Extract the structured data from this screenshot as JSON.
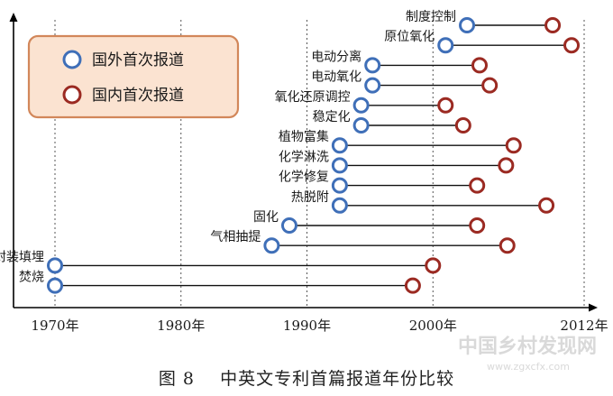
{
  "caption": "图 8    中英文专利首篇报道年份比较",
  "watermark": {
    "name": "中国乡村发现网",
    "url": "www.zgxcfx.com"
  },
  "colors": {
    "foreign": "#3f6fb8",
    "domestic": "#9b2a22",
    "legend_bg": "#fbe3d1",
    "legend_border": "#d2875a",
    "axis": "#000000",
    "connector": "#111111"
  },
  "chart_data": {
    "type": "dumbbell",
    "xlim": [
      1970,
      2012
    ],
    "xticks": [
      {
        "value": 1970,
        "label": "1970年"
      },
      {
        "value": 1980,
        "label": "1980年"
      },
      {
        "value": 1990,
        "label": "1990年"
      },
      {
        "value": 2000,
        "label": "2000年"
      },
      {
        "value": 2012,
        "label": "2012年"
      }
    ],
    "vgrid": [
      1970,
      1980,
      1990,
      2000,
      2012
    ],
    "vgrid_style": "dotted",
    "legend_position": "top-left",
    "series": [
      {
        "key": "foreign",
        "name": "国外首次报道"
      },
      {
        "key": "domestic",
        "name": "国内首次报道"
      }
    ],
    "rows": [
      {
        "label": "制度控制",
        "foreign": 2002.7,
        "domestic": 2009.5
      },
      {
        "label": "原位氧化",
        "foreign": 2001.0,
        "domestic": 2011.0
      },
      {
        "label": "电动分离",
        "foreign": 1995.2,
        "domestic": 2003.7
      },
      {
        "label": "电动氧化",
        "foreign": 1995.2,
        "domestic": 2004.5
      },
      {
        "label": "氧化还原调控",
        "foreign": 1994.3,
        "domestic": 2001.0
      },
      {
        "label": "稳定化",
        "foreign": 1994.3,
        "domestic": 2002.4
      },
      {
        "label": "植物富集",
        "foreign": 1992.6,
        "domestic": 2006.4
      },
      {
        "label": "化学淋洗",
        "foreign": 1992.6,
        "domestic": 2005.8
      },
      {
        "label": "化学修复",
        "foreign": 1992.6,
        "domestic": 2003.5
      },
      {
        "label": "热脱附",
        "foreign": 1992.6,
        "domestic": 2009.0
      },
      {
        "label": "固化",
        "foreign": 1988.6,
        "domestic": 2003.5
      },
      {
        "label": "气相抽提",
        "foreign": 1987.2,
        "domestic": 2005.9
      },
      {
        "label": "封装填埋",
        "foreign": 1970.0,
        "domestic": 2000.0
      },
      {
        "label": "焚烧",
        "foreign": 1970.0,
        "domestic": 1998.4
      }
    ]
  }
}
